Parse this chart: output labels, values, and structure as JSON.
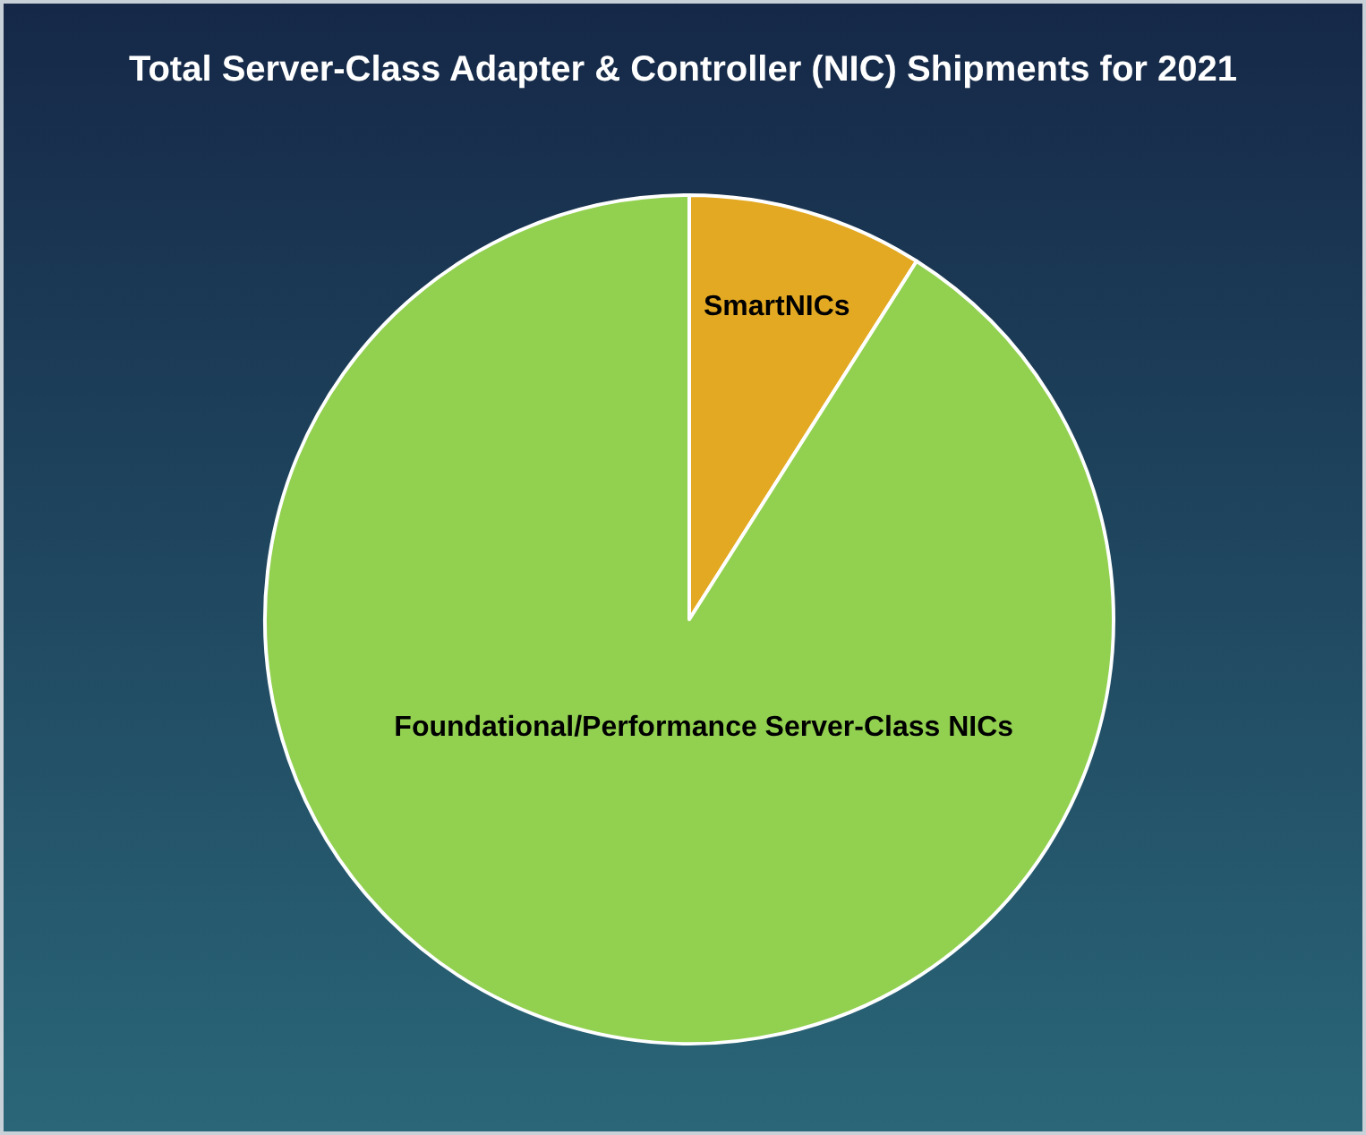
{
  "chart_data": {
    "type": "pie",
    "title": "Total Server-Class Adapter & Controller (NIC) Shipments for 2021",
    "categories": [
      "SmartNICs",
      "Foundational/Performance Server-Class NICs"
    ],
    "values": [
      9,
      91
    ],
    "colors": [
      "#e3a923",
      "#92d050"
    ],
    "legend": false
  }
}
